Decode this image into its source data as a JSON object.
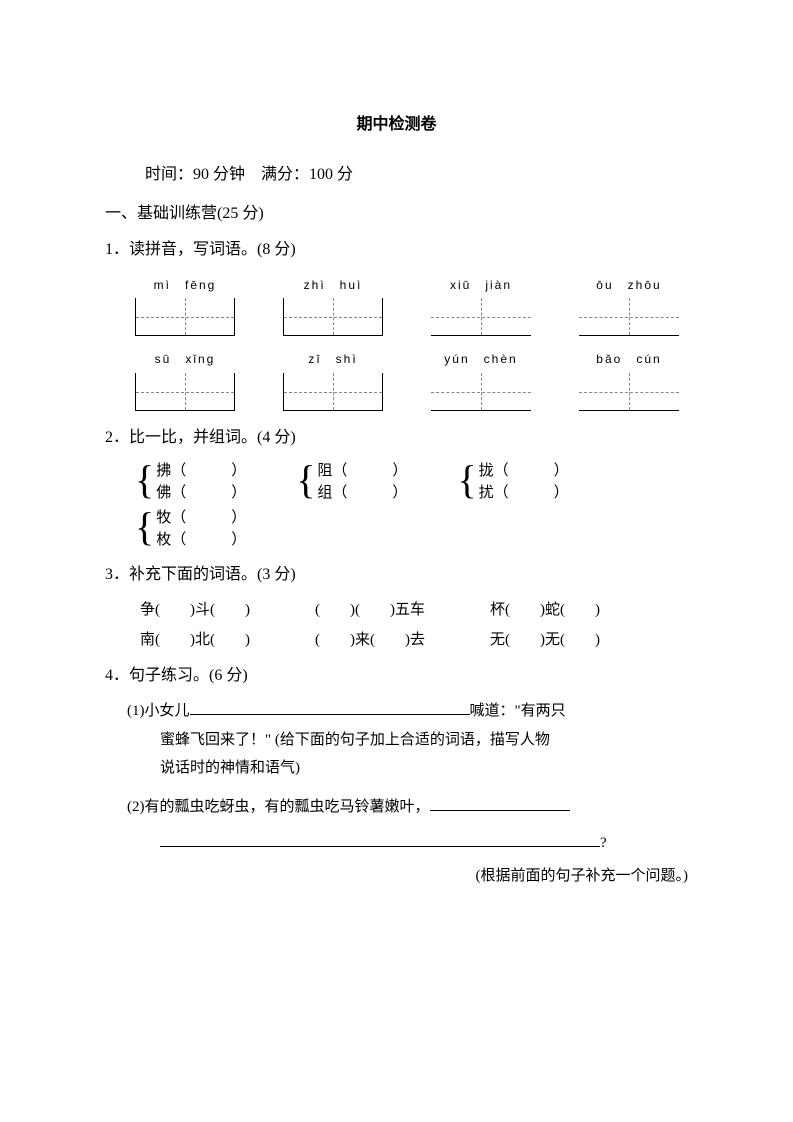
{
  "title": "期中检测卷",
  "info": "时间：90 分钟　满分：100 分",
  "section1": "一、基础训练营(25 分)",
  "q1": "1．读拼音，写词语。(8 分)",
  "pinyin_rows": [
    [
      {
        "p1": "mì",
        "p2": "fēng",
        "style": "solid"
      },
      {
        "p1": "zhì",
        "p2": "huì",
        "style": "solid"
      },
      {
        "p1": "xiū",
        "p2": "jiàn",
        "style": "open"
      },
      {
        "p1": "ōu",
        "p2": "zhōu",
        "style": "open"
      }
    ],
    [
      {
        "p1": "sū",
        "p2": "xǐng",
        "style": "solid"
      },
      {
        "p1": "zī",
        "p2": "shì",
        "style": "solid"
      },
      {
        "p1": "yún",
        "p2": "chèn",
        "style": "open"
      },
      {
        "p1": "bǎo",
        "p2": "cún",
        "style": "open"
      }
    ]
  ],
  "q2": "2．比一比，并组词。(4 分)",
  "compare": {
    "row1": [
      {
        "a": "拂（　　　）",
        "b": "佛（　　　）"
      },
      {
        "a": "阻（　　　）",
        "b": "组（　　　）"
      },
      {
        "a": "拢（　　　）",
        "b": "扰（　　　）"
      }
    ],
    "row2": [
      {
        "a": "牧（　　　）",
        "b": "枚（　　　）"
      }
    ]
  },
  "q3": "3．补充下面的词语。(3 分)",
  "fill": {
    "row1": [
      "争(　　)斗(　　)",
      "(　　)(　　)五车",
      "杯(　　)蛇(　　)"
    ],
    "row2": [
      "南(　　)北(　　)",
      "(　　)来(　　)去",
      "无(　　)无(　　)"
    ]
  },
  "q4": "4．句子练习。(6 分)",
  "q4_1a": "(1)小女儿",
  "q4_1b": "喊道：\"有两只",
  "q4_1c": "蜜蜂飞回来了！\" (给下面的句子加上合适的词语，描写人物",
  "q4_1d": "说话时的神情和语气)",
  "q4_2a": "(2)有的瓢虫吃蚜虫，有的瓢虫吃马铃薯嫩叶，",
  "q4_2b": "?",
  "q4_2note": "(根据前面的句子补充一个问题。)"
}
